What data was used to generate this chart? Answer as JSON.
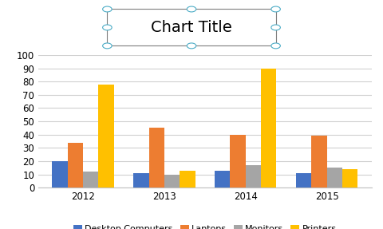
{
  "title": "Chart Title",
  "years": [
    2012,
    2013,
    2014,
    2015
  ],
  "series": {
    "Desktop Computers": [
      20,
      11,
      13,
      11
    ],
    "Laptops": [
      34,
      45,
      40,
      39
    ],
    "Monitors": [
      12,
      10,
      17,
      15
    ],
    "Printers": [
      78,
      13,
      90,
      14
    ]
  },
  "colors": {
    "Desktop Computers": "#4472C4",
    "Laptops": "#ED7D31",
    "Monitors": "#A5A5A5",
    "Printers": "#FFC000"
  },
  "ylim": [
    0,
    100
  ],
  "yticks": [
    0,
    10,
    20,
    30,
    40,
    50,
    60,
    70,
    80,
    90,
    100
  ],
  "background_color": "#FFFFFF",
  "grid_color": "#D0D0D0",
  "title_fontsize": 14,
  "legend_fontsize": 8,
  "tick_fontsize": 8.5,
  "title_box_color": "#7F7F7F",
  "title_box_corner_color": "#4BACC6"
}
